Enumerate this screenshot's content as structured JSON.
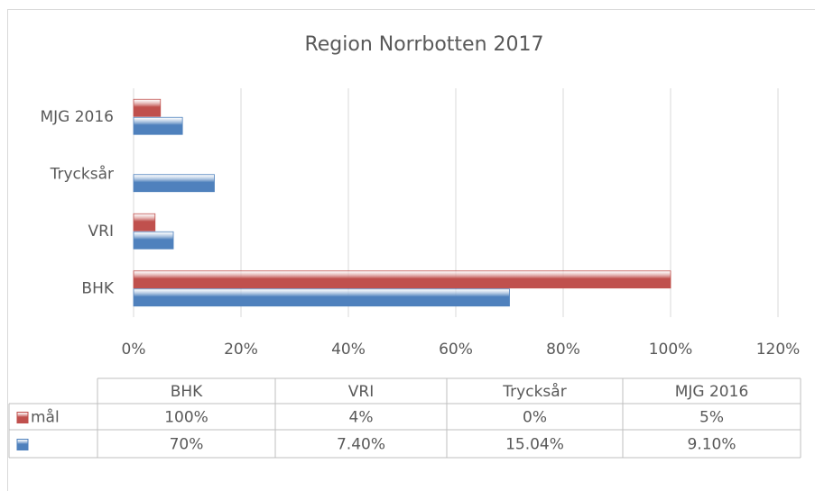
{
  "chart_data": {
    "type": "bar",
    "orientation": "horizontal",
    "title": "Region Norrbotten 2017",
    "categories": [
      "BHK",
      "VRI",
      "Trycksår",
      "MJG 2016"
    ],
    "series": [
      {
        "name": "mål",
        "color": "#c0504d",
        "values": [
          100,
          4,
          0,
          5
        ],
        "value_labels": [
          "100%",
          "4%",
          "0%",
          "5%"
        ]
      },
      {
        "color": "#4f81bd",
        "values": [
          70,
          7.4,
          15.04,
          9.1
        ],
        "value_labels": [
          "70%",
          "7.40%",
          "15.04%",
          "9.10%"
        ]
      }
    ],
    "xlim": [
      0,
      120
    ],
    "xticks": [
      {
        "value": 0,
        "label": "0%"
      },
      {
        "value": 20,
        "label": "20%"
      },
      {
        "value": 40,
        "label": "40%"
      },
      {
        "value": 60,
        "label": "60%"
      },
      {
        "value": 80,
        "label": "80%"
      },
      {
        "value": 100,
        "label": "100%"
      },
      {
        "value": 120,
        "label": "120%"
      }
    ],
    "grid": true,
    "data_table": true
  }
}
